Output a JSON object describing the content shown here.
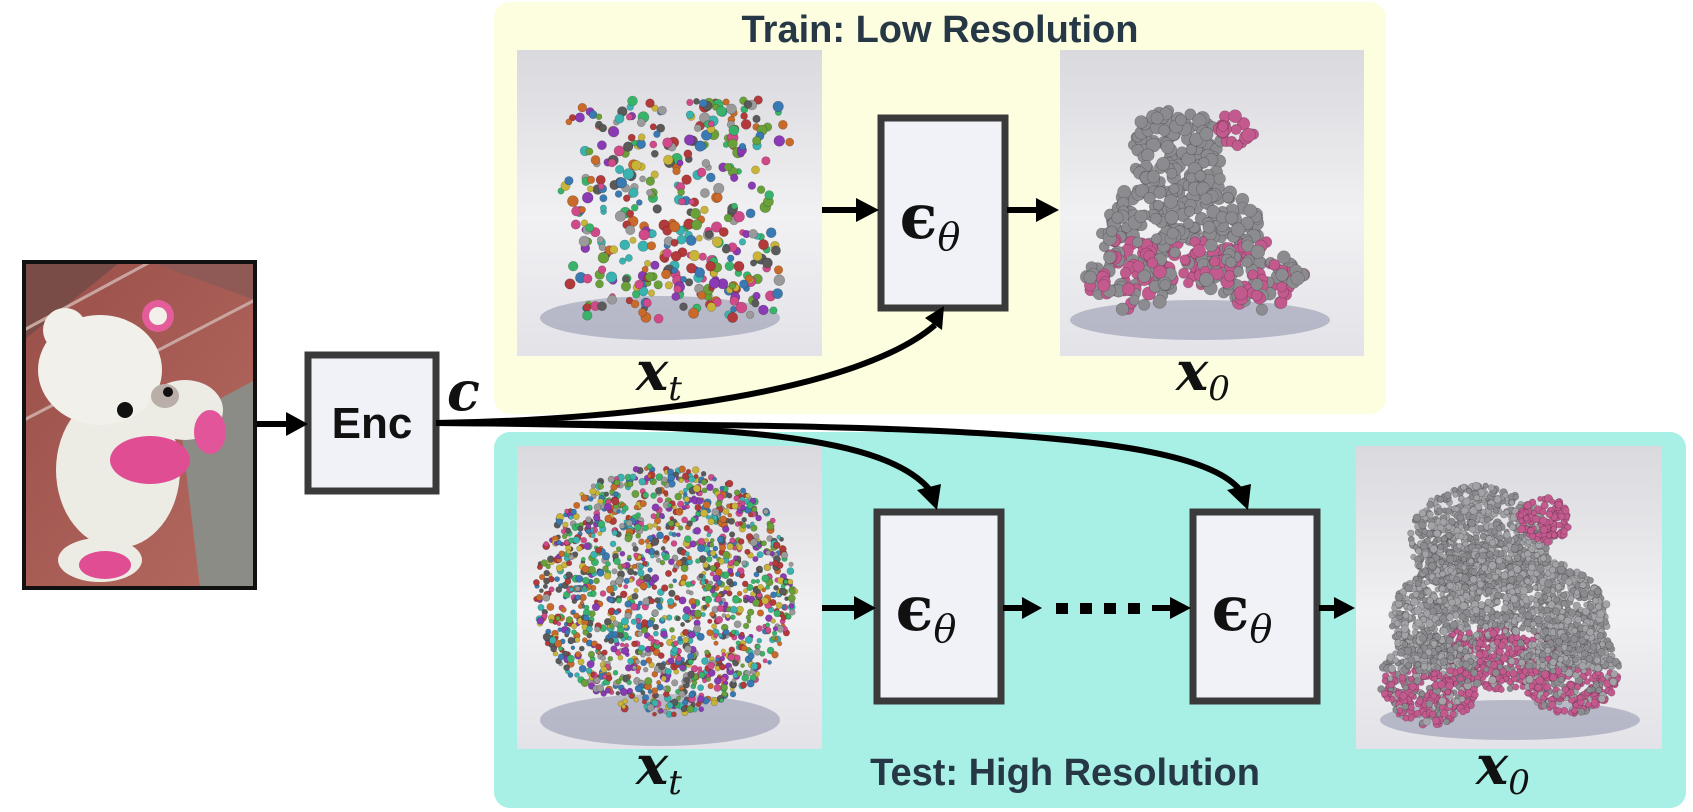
{
  "panels": {
    "train": {
      "title": "Train: Low Resolution",
      "color": "#fdfde0"
    },
    "test": {
      "title": "Test: High Resolution",
      "color": "#a8f0e6"
    }
  },
  "encoder": {
    "label": "Enc"
  },
  "condition": {
    "symbol": "c"
  },
  "denoiser": {
    "symbol": "ϵ",
    "subscript": "θ"
  },
  "labels": {
    "noisy": {
      "base": "x",
      "sub": "t"
    },
    "clean": {
      "base": "x",
      "sub": "0"
    }
  },
  "colors": {
    "cloud_gray": "#8c8c90",
    "bear_pink": "#c25a8e",
    "floor": "#a5524c"
  }
}
